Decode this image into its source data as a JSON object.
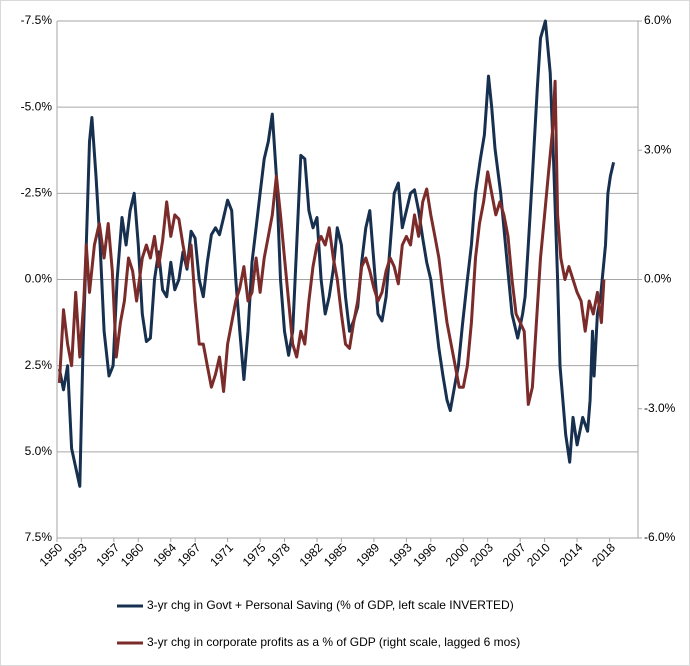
{
  "chart_data": {
    "type": "line",
    "xlim": [
      1950,
      2021.5
    ],
    "xticks": [
      1950,
      1953,
      1957,
      1960,
      1964,
      1967,
      1971,
      1975,
      1978,
      1982,
      1985,
      1989,
      1993,
      1996,
      2000,
      2003,
      2007,
      2010,
      2014,
      2018
    ],
    "ylim": [
      -7.5,
      7.5
    ],
    "y_inverted": true,
    "yticks": [
      {
        "value": -7.5,
        "label": "-7.5%"
      },
      {
        "value": -5,
        "label": "-5.0%"
      },
      {
        "value": -2.5,
        "label": "-2.5%"
      },
      {
        "value": 0,
        "label": "0.0%"
      },
      {
        "value": 2.5,
        "label": "2.5%"
      },
      {
        "value": 5,
        "label": "5.0%"
      },
      {
        "value": 7.5,
        "label": "7.5%"
      }
    ],
    "y2lim": [
      -6,
      6
    ],
    "y2ticks": [
      {
        "value": 6,
        "label": "6.0%"
      },
      {
        "value": 3,
        "label": "3.0%"
      },
      {
        "value": 0,
        "label": "0.0%"
      },
      {
        "value": -3,
        "label": "-3.0%"
      },
      {
        "value": -6,
        "label": "-6.0%"
      }
    ],
    "grid": true,
    "legend": "bottom",
    "series": [
      {
        "name": "3-yr chg in Govt + Personal Saving (% of GDP, left scale INVERTED)",
        "color": "#17304f",
        "axis": "y",
        "x": [
          1950.3,
          1950.8,
          1951.3,
          1951.8,
          1952.8,
          1953.2,
          1953.6,
          1954.0,
          1954.3,
          1954.8,
          1955.3,
          1955.8,
          1956.4,
          1956.9,
          1957.4,
          1958.0,
          1958.5,
          1959.0,
          1959.5,
          1960.0,
          1960.5,
          1961.0,
          1961.5,
          1962.0,
          1962.5,
          1963.0,
          1963.5,
          1964.0,
          1964.5,
          1965.0,
          1965.5,
          1966.0,
          1966.5,
          1967.0,
          1967.5,
          1968.0,
          1968.5,
          1969.0,
          1969.5,
          1970.0,
          1970.5,
          1971.0,
          1971.5,
          1972.0,
          1972.5,
          1973.0,
          1973.5,
          1974.0,
          1974.5,
          1975.0,
          1975.5,
          1976.0,
          1976.5,
          1977.0,
          1977.5,
          1978.0,
          1978.5,
          1979.0,
          1979.5,
          1980.0,
          1980.5,
          1981.0,
          1981.5,
          1982.0,
          1982.5,
          1983.0,
          1983.5,
          1984.0,
          1984.5,
          1985.0,
          1985.5,
          1986.0,
          1986.5,
          1987.0,
          1987.5,
          1988.0,
          1988.5,
          1989.0,
          1989.5,
          1990.0,
          1990.5,
          1991.0,
          1991.5,
          1992.0,
          1992.5,
          1993.0,
          1993.5,
          1994.0,
          1994.5,
          1995.0,
          1995.5,
          1996.0,
          1996.5,
          1997.0,
          1997.5,
          1998.0,
          1998.4,
          1999.0,
          1999.4,
          1999.9,
          2000.5,
          2001.0,
          2001.5,
          2002.1,
          2002.6,
          2003.1,
          2003.5,
          2003.9,
          2004.6,
          2005.2,
          2006.0,
          2006.7,
          2007.3,
          2007.6,
          2008.0,
          2008.5,
          2009.1,
          2009.5,
          2010.1,
          2010.7,
          2011.1,
          2011.6,
          2011.9,
          2012.6,
          2013.1,
          2013.5,
          2014.0,
          2014.7,
          2015.3,
          2015.6,
          2015.9,
          2016.1,
          2016.5,
          2016.9,
          2017.1,
          2017.5,
          2017.8,
          2018.1,
          2018.5
        ],
        "values": [
          2.6,
          3.2,
          2.5,
          4.9,
          6.0,
          2.0,
          -1.0,
          -4.0,
          -4.7,
          -3.0,
          -1.0,
          1.5,
          2.8,
          2.5,
          0.0,
          -1.8,
          -1.0,
          -2.0,
          -2.5,
          -1.0,
          1.0,
          1.8,
          1.7,
          0.0,
          -0.8,
          0.3,
          0.5,
          -0.5,
          0.3,
          0.0,
          -0.8,
          -0.3,
          -1.4,
          -1.2,
          0.0,
          0.5,
          -0.5,
          -1.3,
          -1.5,
          -1.3,
          -1.8,
          -2.3,
          -2.0,
          0.0,
          1.5,
          2.9,
          1.5,
          -0.5,
          -1.5,
          -2.5,
          -3.5,
          -4.0,
          -4.8,
          -3.0,
          0.0,
          1.5,
          2.2,
          1.5,
          -1.0,
          -3.6,
          -3.5,
          -2.0,
          -1.5,
          -1.8,
          0.0,
          1.0,
          0.5,
          -0.3,
          -1.5,
          -1.0,
          0.5,
          1.5,
          1.2,
          0.8,
          -0.5,
          -1.5,
          -2.0,
          -0.5,
          1.0,
          1.2,
          0.5,
          -1.0,
          -2.5,
          -2.8,
          -1.5,
          -2.0,
          -2.5,
          -2.6,
          -2.0,
          -1.2,
          -0.5,
          0.0,
          1.0,
          2.0,
          2.8,
          3.5,
          3.8,
          3.0,
          2.5,
          1.3,
          0.0,
          -1.0,
          -2.5,
          -3.5,
          -4.2,
          -5.9,
          -5.0,
          -3.8,
          -2.5,
          -1.0,
          1.0,
          1.7,
          1.0,
          0.5,
          -1.0,
          -3.0,
          -5.5,
          -7.0,
          -7.5,
          -6.0,
          -3.5,
          0.0,
          2.5,
          4.5,
          5.3,
          4.0,
          4.8,
          4.0,
          4.4,
          3.5,
          1.5,
          2.8,
          1.0,
          0.5,
          0.0,
          -1.0,
          -2.5,
          -3.0,
          -3.4
        ]
      },
      {
        "name": "3-yr chg in corporate profits as a % of GDP (right scale, lagged 6 mos)",
        "color": "#7b2c2a",
        "axis": "y2",
        "x": [
          1950.3,
          1950.8,
          1951.3,
          1951.8,
          1952.3,
          1952.8,
          1953.3,
          1953.6,
          1954.0,
          1954.6,
          1955.2,
          1955.8,
          1956.3,
          1956.8,
          1957.3,
          1957.8,
          1958.3,
          1958.8,
          1959.3,
          1959.8,
          1960.5,
          1961.0,
          1961.5,
          1962.0,
          1962.5,
          1963.0,
          1963.5,
          1964.0,
          1964.5,
          1965.0,
          1965.5,
          1966.0,
          1966.5,
          1967.0,
          1967.5,
          1968.0,
          1968.5,
          1969.0,
          1969.5,
          1970.0,
          1970.5,
          1971.0,
          1971.5,
          1972.0,
          1972.5,
          1973.0,
          1973.5,
          1974.0,
          1974.5,
          1975.0,
          1975.5,
          1976.0,
          1976.5,
          1977.0,
          1977.5,
          1978.0,
          1978.5,
          1979.0,
          1979.5,
          1980.0,
          1980.5,
          1981.0,
          1981.5,
          1982.0,
          1982.5,
          1983.0,
          1983.5,
          1984.0,
          1984.5,
          1985.0,
          1985.5,
          1986.0,
          1986.5,
          1987.0,
          1987.5,
          1988.0,
          1988.5,
          1989.0,
          1989.5,
          1990.0,
          1990.5,
          1991.0,
          1991.5,
          1992.0,
          1992.5,
          1993.0,
          1993.5,
          1994.0,
          1994.5,
          1995.0,
          1995.5,
          1996.0,
          1996.5,
          1997.0,
          1997.5,
          1998.0,
          1998.5,
          1999.0,
          1999.5,
          2000.0,
          2000.5,
          2001.0,
          2001.5,
          2002.0,
          2002.5,
          2003.0,
          2003.5,
          2004.0,
          2004.5,
          2005.0,
          2005.5,
          2006.0,
          2006.5,
          2007.0,
          2007.5,
          2008.0,
          2008.5,
          2009.0,
          2009.5,
          2010.0,
          2010.5,
          2011.0,
          2011.3,
          2011.6,
          2012.0,
          2012.5,
          2013.0,
          2013.5,
          2014.0,
          2014.5,
          2015.0,
          2015.5,
          2016.0,
          2016.5,
          2017.0,
          2017.3
        ],
        "values": [
          -2.4,
          -0.7,
          -1.5,
          -2.0,
          -0.3,
          -1.8,
          -0.5,
          0.8,
          -0.3,
          0.8,
          1.3,
          0.5,
          1.3,
          0.2,
          -1.8,
          -1.0,
          -0.5,
          0.5,
          0.2,
          -0.5,
          0.5,
          0.8,
          0.5,
          1.0,
          0.3,
          0.9,
          1.8,
          1.0,
          1.5,
          1.4,
          0.8,
          0.3,
          0.8,
          -0.5,
          -1.5,
          -1.5,
          -2.0,
          -2.5,
          -2.2,
          -1.8,
          -2.6,
          -1.5,
          -1.0,
          -0.5,
          -0.2,
          0.3,
          -0.5,
          -0.3,
          0.5,
          -0.3,
          0.5,
          1.0,
          1.5,
          2.4,
          1.5,
          0.5,
          -0.5,
          -1.5,
          -1.8,
          -1.2,
          -1.5,
          -0.5,
          0.3,
          0.8,
          1.0,
          0.8,
          1.2,
          0.5,
          0.0,
          -0.8,
          -1.5,
          -1.6,
          -1.0,
          -0.5,
          0.3,
          0.5,
          0.2,
          -0.2,
          -0.5,
          -0.3,
          0.2,
          0.5,
          0.3,
          -0.1,
          0.8,
          1.0,
          0.8,
          1.5,
          1.0,
          1.8,
          2.1,
          1.5,
          1.0,
          0.5,
          -0.3,
          -1.0,
          -1.5,
          -2.0,
          -2.5,
          -2.5,
          -2.0,
          -1.0,
          0.5,
          1.3,
          1.8,
          2.5,
          2.0,
          1.5,
          1.8,
          1.5,
          1.0,
          0.0,
          -0.8,
          -1.0,
          -1.2,
          -2.9,
          -2.5,
          -1.0,
          0.5,
          1.5,
          2.5,
          3.5,
          4.6,
          1.5,
          0.5,
          0.0,
          0.3,
          0.0,
          -0.3,
          -0.5,
          -1.2,
          -0.5,
          -0.8,
          -0.3,
          -1.0,
          0.0
        ]
      }
    ]
  }
}
